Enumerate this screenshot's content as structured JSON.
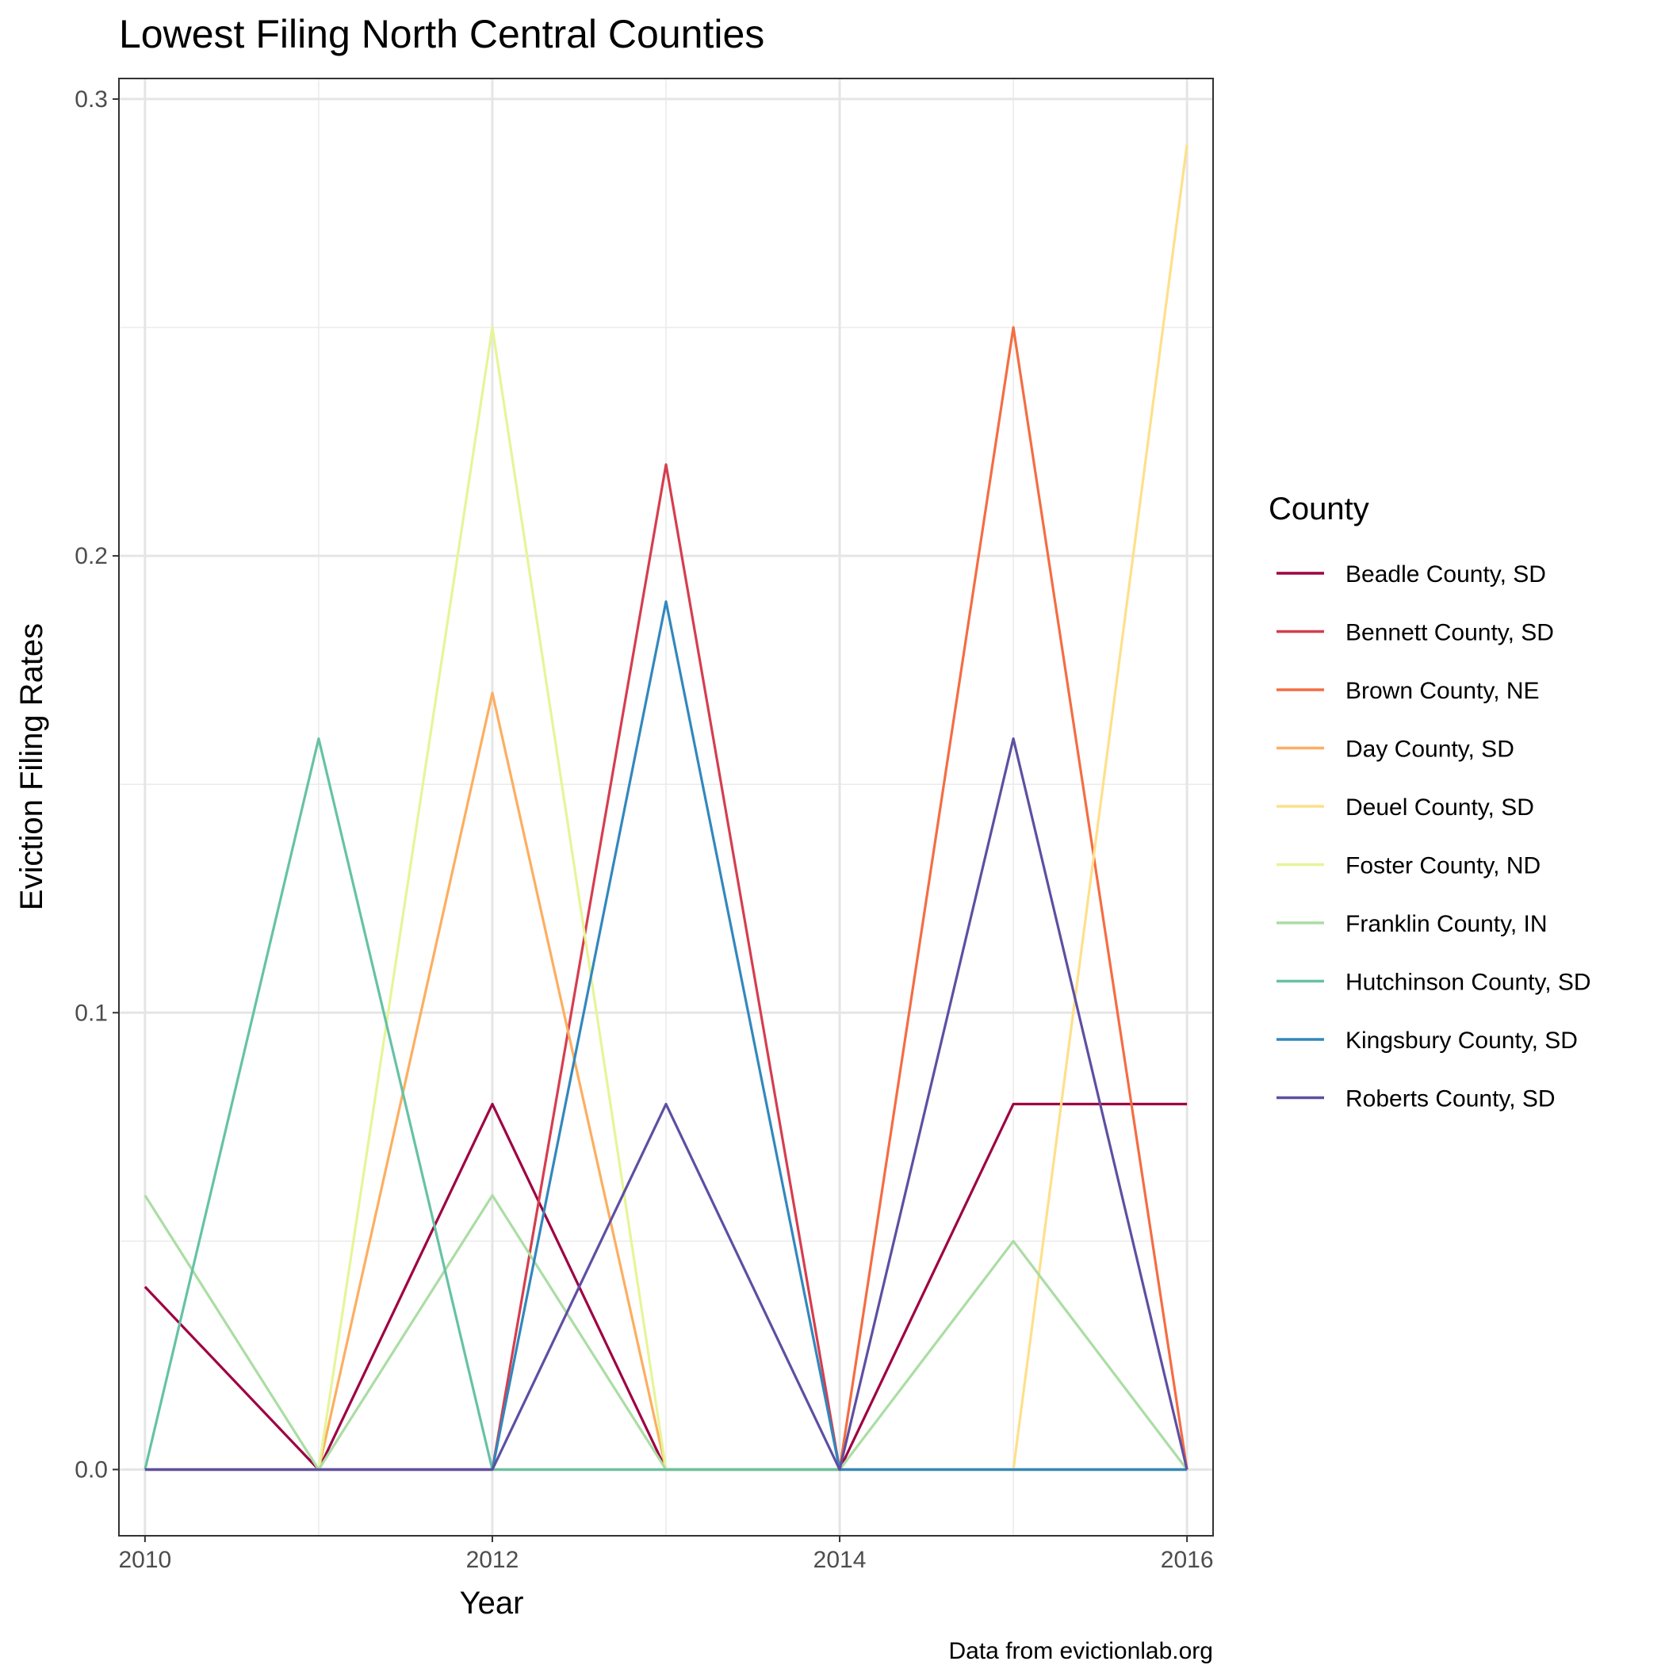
{
  "chart_data": {
    "type": "line",
    "title": "Lowest Filing North Central Counties",
    "xlabel": "Year",
    "ylabel": "Eviction Filing Rates",
    "caption": "Data from evictionlab.org",
    "legend_title": "County",
    "legend_position": "right",
    "grid": true,
    "xlim": [
      2009.85,
      2016.15
    ],
    "ylim": [
      -0.0145,
      0.3045
    ],
    "x": [
      2010,
      2011,
      2012,
      2013,
      2014,
      2015,
      2016
    ],
    "x_ticks": [
      {
        "value": 2010,
        "label": "2010"
      },
      {
        "value": 2012,
        "label": "2012"
      },
      {
        "value": 2014,
        "label": "2014"
      },
      {
        "value": 2016,
        "label": "2016"
      }
    ],
    "x_minor": [
      2011,
      2013,
      2015
    ],
    "y_ticks": [
      {
        "value": 0.0,
        "label": "0.0"
      },
      {
        "value": 0.1,
        "label": "0.1"
      },
      {
        "value": 0.2,
        "label": "0.2"
      },
      {
        "value": 0.3,
        "label": "0.3"
      }
    ],
    "y_minor": [
      0.05,
      0.15,
      0.25
    ],
    "series": [
      {
        "name": "Beadle County, SD",
        "color": "#9E0142",
        "values": [
          0.04,
          0,
          0.08,
          0,
          0,
          0.08,
          0.08
        ]
      },
      {
        "name": "Bennett County, SD",
        "color": "#D53E4F",
        "values": [
          0,
          0,
          0,
          0.22,
          0,
          0,
          0
        ]
      },
      {
        "name": "Brown County, NE",
        "color": "#F46D43",
        "values": [
          0,
          0,
          0,
          0,
          0,
          0.25,
          0
        ]
      },
      {
        "name": "Day County, SD",
        "color": "#FDAE61",
        "values": [
          0,
          0,
          0.17,
          0,
          0,
          0,
          0
        ]
      },
      {
        "name": "Deuel County, SD",
        "color": "#FEE08B",
        "values": [
          0,
          0,
          0,
          0,
          0,
          0,
          0.29
        ]
      },
      {
        "name": "Foster County, ND",
        "color": "#E6F598",
        "values": [
          0,
          0,
          0.25,
          0,
          0,
          0,
          0
        ]
      },
      {
        "name": "Franklin County, IN",
        "color": "#ABDDA4",
        "values": [
          0.06,
          0,
          0.06,
          0,
          0,
          0.05,
          0
        ]
      },
      {
        "name": "Hutchinson County, SD",
        "color": "#66C2A5",
        "values": [
          0,
          0.16,
          0,
          0,
          0,
          0,
          0
        ]
      },
      {
        "name": "Kingsbury County, SD",
        "color": "#3288BD",
        "values": [
          0,
          0,
          0,
          0.19,
          0,
          0,
          0
        ]
      },
      {
        "name": "Roberts County, SD",
        "color": "#5E4FA2",
        "values": [
          0,
          0,
          0,
          0.08,
          0,
          0.16,
          0
        ]
      }
    ]
  }
}
